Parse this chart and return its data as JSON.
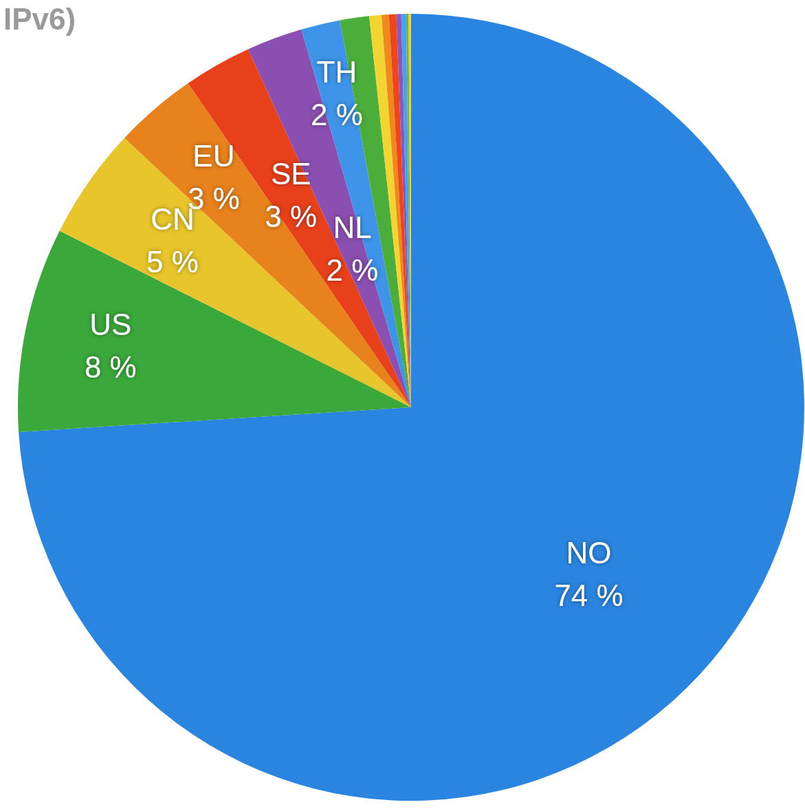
{
  "chart_data": {
    "type": "pie",
    "title": "IPv6)",
    "categories": [
      "NO",
      "US",
      "CN",
      "EU",
      "SE",
      "NL",
      "TH",
      null,
      null,
      null,
      null,
      null,
      null,
      null,
      null
    ],
    "values": [
      74.0,
      8.4,
      4.6,
      3.4,
      2.8,
      2.3,
      1.6,
      1.2,
      0.5,
      0.3,
      0.3,
      0.2,
      0.2,
      0.1,
      0.1
    ],
    "value_labels": [
      "74 %",
      "8 %",
      "5 %",
      "3 %",
      "3 %",
      "2 %",
      "2 %",
      null,
      null,
      null,
      null,
      null,
      null,
      null,
      null
    ],
    "colors": [
      "#2a85e0",
      "#3aa83a",
      "#e8c52a",
      "#e8821c",
      "#e8401a",
      "#8a4fb0",
      "#3d94e8",
      "#4cae3a",
      "#f2d530",
      "#ee8a1c",
      "#f0441a",
      "#8a58b8",
      "#4aa0f0",
      "#6ab84a",
      "#f2d030"
    ],
    "legend": false
  }
}
